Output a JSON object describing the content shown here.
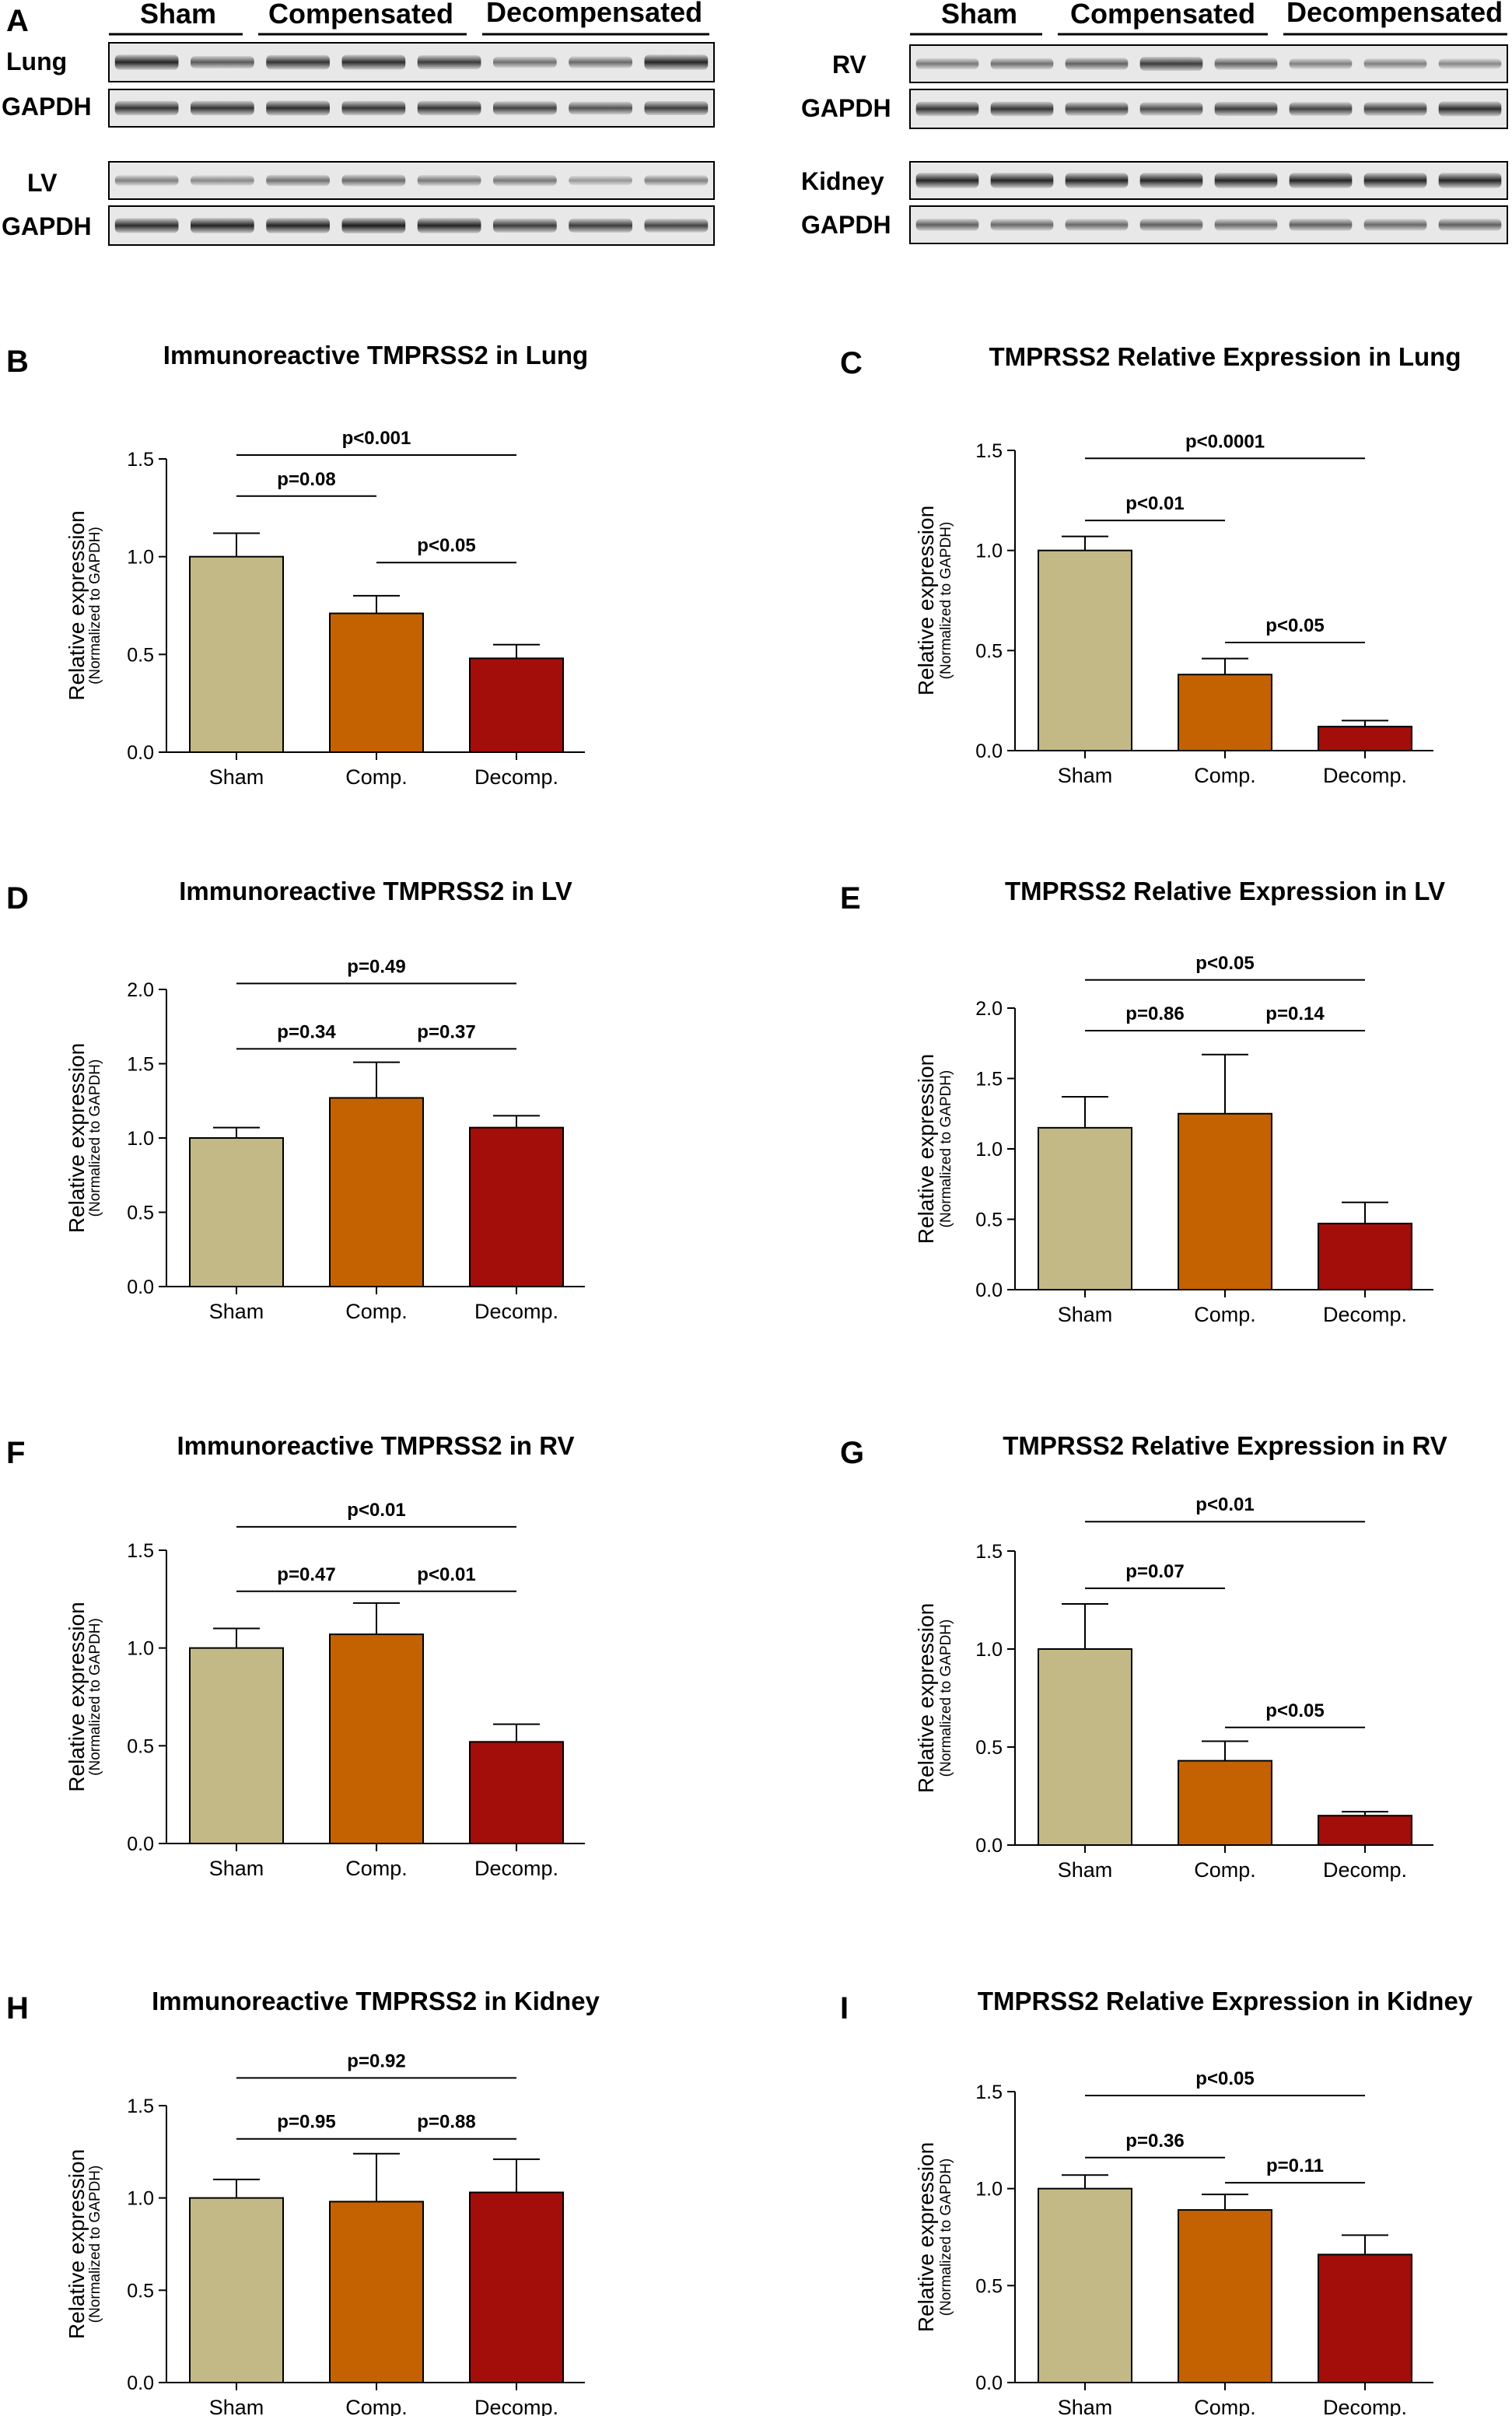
{
  "figure": {
    "panelA_letter": "A",
    "blot_groups": [
      "Sham",
      "Compensated",
      "Decompensated"
    ],
    "blot_rows_left": [
      "Lung",
      "GAPDH",
      "LV",
      "GAPDH"
    ],
    "blot_rows_right": [
      "RV",
      "GAPDH",
      "Kidney",
      "GAPDH"
    ]
  },
  "colors": {
    "sham": "#c3b986",
    "comp": "#c46201",
    "decomp": "#a30e0a"
  },
  "chart_data": [
    {
      "id": "B",
      "letter": "B",
      "type": "bar",
      "title": "Immunoreactive TMPRSS2 in Lung",
      "ylabel": "Relative expression",
      "ylabel_sub": "(Normalized to GAPDH)",
      "categories": [
        "Sham",
        "Comp.",
        "Decomp."
      ],
      "values": [
        1.0,
        0.71,
        0.48
      ],
      "errors": [
        0.12,
        0.09,
        0.07
      ],
      "ylim": [
        0,
        1.5
      ],
      "yticks": [
        "0.0",
        "0.5",
        "1.0",
        "1.5"
      ],
      "ytick_values": [
        0,
        0.5,
        1.0,
        1.5
      ],
      "comparisons": [
        {
          "from": 0,
          "to": 1,
          "label": "p=0.08",
          "level": 1.31
        },
        {
          "from": 1,
          "to": 2,
          "label": "p<0.05",
          "level": 0.97
        },
        {
          "from": 0,
          "to": 2,
          "label": "p<0.001",
          "level": 1.52
        }
      ]
    },
    {
      "id": "C",
      "letter": "C",
      "type": "bar",
      "title": "TMPRSS2 Relative Expression in Lung",
      "ylabel": "Relative expression",
      "ylabel_sub": "(Normalized to GAPDH)",
      "categories": [
        "Sham",
        "Comp.",
        "Decomp."
      ],
      "values": [
        1.0,
        0.38,
        0.12
      ],
      "errors": [
        0.07,
        0.08,
        0.03
      ],
      "ylim": [
        0,
        1.5
      ],
      "yticks": [
        "0.0",
        "0.5",
        "1.0",
        "1.5"
      ],
      "ytick_values": [
        0,
        0.5,
        1.0,
        1.5
      ],
      "comparisons": [
        {
          "from": 0,
          "to": 1,
          "label": "p<0.01",
          "level": 1.15
        },
        {
          "from": 1,
          "to": 2,
          "label": "p<0.05",
          "level": 0.54
        },
        {
          "from": 0,
          "to": 2,
          "label": "p<0.0001",
          "level": 1.46
        }
      ]
    },
    {
      "id": "D",
      "letter": "D",
      "type": "bar",
      "title": "Immunoreactive TMPRSS2 in LV",
      "ylabel": "Relative expression",
      "ylabel_sub": "(Normalized to GAPDH)",
      "categories": [
        "Sham",
        "Comp.",
        "Decomp."
      ],
      "values": [
        1.0,
        1.27,
        1.07
      ],
      "errors": [
        0.07,
        0.24,
        0.08
      ],
      "ylim": [
        0,
        2.0
      ],
      "yticks": [
        "0.0",
        "0.5",
        "1.0",
        "1.5",
        "2.0"
      ],
      "ytick_values": [
        0,
        0.5,
        1.0,
        1.5,
        2.0
      ],
      "comparisons": [
        {
          "from": 0,
          "to": 1,
          "label": "p=0.34",
          "level": 1.6
        },
        {
          "from": 1,
          "to": 2,
          "label": "p=0.37",
          "level": 1.6
        },
        {
          "from": 0,
          "to": 2,
          "label": "p=0.49",
          "level": 2.04
        }
      ]
    },
    {
      "id": "E",
      "letter": "E",
      "type": "bar",
      "title": "TMPRSS2 Relative Expression in LV",
      "ylabel": "Relative expression",
      "ylabel_sub": "(Normalized to GAPDH)",
      "categories": [
        "Sham",
        "Comp.",
        "Decomp."
      ],
      "values": [
        1.15,
        1.25,
        0.47
      ],
      "errors": [
        0.22,
        0.42,
        0.15
      ],
      "ylim": [
        0,
        2.0
      ],
      "yticks": [
        "0.0",
        "0.5",
        "1.0",
        "1.5",
        "2.0"
      ],
      "ytick_values": [
        0,
        0.5,
        1.0,
        1.5,
        2.0
      ],
      "comparisons": [
        {
          "from": 0,
          "to": 1,
          "label": "p=0.86",
          "level": 1.84
        },
        {
          "from": 1,
          "to": 2,
          "label": "p=0.14",
          "level": 1.84
        },
        {
          "from": 0,
          "to": 2,
          "label": "p<0.05",
          "level": 2.2
        }
      ]
    },
    {
      "id": "F",
      "letter": "F",
      "type": "bar",
      "title": "Immunoreactive TMPRSS2 in RV",
      "ylabel": "Relative expression",
      "ylabel_sub": "(Normalized to GAPDH)",
      "categories": [
        "Sham",
        "Comp.",
        "Decomp."
      ],
      "values": [
        1.0,
        1.07,
        0.52
      ],
      "errors": [
        0.1,
        0.16,
        0.09
      ],
      "ylim": [
        0,
        1.5
      ],
      "yticks": [
        "0.0",
        "0.5",
        "1.0",
        "1.5"
      ],
      "ytick_values": [
        0,
        0.5,
        1.0,
        1.5
      ],
      "comparisons": [
        {
          "from": 0,
          "to": 1,
          "label": "p=0.47",
          "level": 1.29
        },
        {
          "from": 1,
          "to": 2,
          "label": "p<0.01",
          "level": 1.29
        },
        {
          "from": 0,
          "to": 2,
          "label": "p<0.01",
          "level": 1.62
        }
      ]
    },
    {
      "id": "G",
      "letter": "G",
      "type": "bar",
      "title": "TMPRSS2 Relative Expression in RV",
      "ylabel": "Relative expression",
      "ylabel_sub": "(Normalized to GAPDH)",
      "categories": [
        "Sham",
        "Comp.",
        "Decomp."
      ],
      "values": [
        1.0,
        0.43,
        0.15
      ],
      "errors": [
        0.23,
        0.1,
        0.02
      ],
      "ylim": [
        0,
        1.5
      ],
      "yticks": [
        "0.0",
        "0.5",
        "1.0",
        "1.5"
      ],
      "ytick_values": [
        0,
        0.5,
        1.0,
        1.5
      ],
      "comparisons": [
        {
          "from": 0,
          "to": 1,
          "label": "p=0.07",
          "level": 1.31
        },
        {
          "from": 1,
          "to": 2,
          "label": "p<0.05",
          "level": 0.6
        },
        {
          "from": 0,
          "to": 2,
          "label": "p<0.01",
          "level": 1.65
        }
      ]
    },
    {
      "id": "H",
      "letter": "H",
      "type": "bar",
      "title": "Immunoreactive TMPRSS2 in Kidney",
      "ylabel": "Relative expression",
      "ylabel_sub": "(Normalized to GAPDH)",
      "categories": [
        "Sham",
        "Comp.",
        "Decomp."
      ],
      "values": [
        1.0,
        0.98,
        1.03
      ],
      "errors": [
        0.1,
        0.26,
        0.18
      ],
      "ylim": [
        0,
        1.5
      ],
      "yticks": [
        "0.0",
        "0.5",
        "1.0",
        "1.5"
      ],
      "ytick_values": [
        0,
        0.5,
        1.0,
        1.5
      ],
      "comparisons": [
        {
          "from": 0,
          "to": 1,
          "label": "p=0.95",
          "level": 1.32
        },
        {
          "from": 1,
          "to": 2,
          "label": "p=0.88",
          "level": 1.32
        },
        {
          "from": 0,
          "to": 2,
          "label": "p=0.92",
          "level": 1.65
        }
      ]
    },
    {
      "id": "I",
      "letter": "I",
      "type": "bar",
      "title": "TMPRSS2 Relative Expression in Kidney",
      "ylabel": "Relative expression",
      "ylabel_sub": "(Normalized to GAPDH)",
      "categories": [
        "Sham",
        "Comp.",
        "Decomp."
      ],
      "values": [
        1.0,
        0.89,
        0.66
      ],
      "errors": [
        0.07,
        0.08,
        0.1
      ],
      "ylim": [
        0,
        1.5
      ],
      "yticks": [
        "0.0",
        "0.5",
        "1.0",
        "1.5"
      ],
      "ytick_values": [
        0,
        0.5,
        1.0,
        1.5
      ],
      "comparisons": [
        {
          "from": 0,
          "to": 1,
          "label": "p=0.36",
          "level": 1.16
        },
        {
          "from": 1,
          "to": 2,
          "label": "p=0.11",
          "level": 1.03
        },
        {
          "from": 0,
          "to": 2,
          "label": "p<0.05",
          "level": 1.48
        }
      ]
    }
  ]
}
